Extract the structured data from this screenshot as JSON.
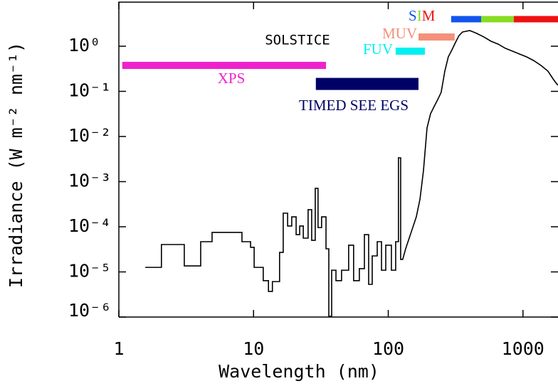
{
  "chart_data": {
    "type": "line",
    "xlabel": "Wavelength (nm)",
    "ylabel": "Irradiance (W m⁻² nm⁻¹)",
    "xscale": "log",
    "yscale": "log",
    "xlim": [
      1,
      1820
    ],
    "ylim": [
      1e-06,
      9.47
    ],
    "xticks": [
      1,
      10,
      100,
      1000
    ],
    "yticks": [
      {
        "value": 1,
        "label": "10⁰"
      },
      {
        "value": 0.1,
        "label": "10⁻¹"
      },
      {
        "value": 0.01,
        "label": "10⁻²"
      },
      {
        "value": 0.001,
        "label": "10⁻³"
      },
      {
        "value": 0.0001,
        "label": "10⁻⁴"
      },
      {
        "value": 1e-05,
        "label": "10⁻⁵"
      },
      {
        "value": 1e-06,
        "label": "10⁻⁶"
      }
    ],
    "color": "#000000",
    "x": [
      1.57,
      2.07,
      2.07,
      3.06,
      3.06,
      4.05,
      4.05,
      4.92,
      4.92,
      8.2,
      8.2,
      9.5,
      9.5,
      10.1,
      10.1,
      11.8,
      11.8,
      12.9,
      12.9,
      13.8,
      13.8,
      15.6,
      15.6,
      16.6,
      16.6,
      17.9,
      17.9,
      19.2,
      19.2,
      20.7,
      20.7,
      22.0,
      22.0,
      23.4,
      23.4,
      25.4,
      25.4,
      27.0,
      27.0,
      28.7,
      28.7,
      30.1,
      30.1,
      32.0,
      32.0,
      34.5,
      34.5,
      36.2,
      36.2,
      38.0,
      38.0,
      40.9,
      40.9,
      45.0,
      45.0,
      50.8,
      50.8,
      55.3,
      55.3,
      61.0,
      61.0,
      66.5,
      66.5,
      71.5,
      71.5,
      76.0,
      76.0,
      82.8,
      82.8,
      89.1,
      89.1,
      95.8,
      95.8,
      105.5,
      105.5,
      113.5,
      113.5,
      119,
      119,
      123.6,
      123.6,
      128,
      134.6,
      143,
      152,
      161.5,
      172,
      182.5,
      194,
      206,
      219,
      233,
      247,
      263,
      279,
      297,
      315,
      335,
      356,
      378,
      402,
      427,
      454,
      513,
      579,
      655,
      739,
      834,
      942,
      1064,
      1202,
      1358,
      1532,
      1687,
      1816
    ],
    "values": [
      1.26e-05,
      1.26e-05,
      4.04e-05,
      4.04e-05,
      1.36e-05,
      1.36e-05,
      4.67e-05,
      4.67e-05,
      7.5e-05,
      7.5e-05,
      4.67e-05,
      4.67e-05,
      3.5e-05,
      3.5e-05,
      1.26e-05,
      1.26e-05,
      6.4e-06,
      6.4e-06,
      3.7e-06,
      3.7e-06,
      6.1e-06,
      6.1e-06,
      2.7e-05,
      2.7e-05,
      0.0002,
      0.0002,
      0.000104,
      0.000104,
      0.000166,
      0.000166,
      6.7e-05,
      6.7e-05,
      0.000104,
      0.000104,
      5.6e-05,
      5.6e-05,
      0.000239,
      0.000239,
      5e-05,
      5e-05,
      0.00071,
      0.00071,
      9.6e-05,
      9.6e-05,
      0.000166,
      0.000166,
      3.25e-05,
      3.25e-05,
      1.04e-06,
      1.04e-06,
      1.09e-05,
      1.09e-05,
      6.4e-06,
      6.4e-06,
      1.09e-05,
      1.09e-05,
      3.9e-05,
      3.9e-05,
      6.4e-06,
      6.4e-06,
      1.18e-05,
      1.18e-05,
      6.7e-05,
      6.7e-05,
      5.3e-06,
      5.3e-06,
      2.26e-05,
      2.26e-05,
      4.67e-05,
      4.67e-05,
      1.09e-05,
      1.09e-05,
      3.9e-05,
      3.9e-05,
      1.09e-05,
      1.09e-05,
      4.67e-05,
      4.67e-05,
      0.00337,
      0.00337,
      1.89e-05,
      1.89e-05,
      3.25e-05,
      5.6e-05,
      9.6e-05,
      0.000166,
      0.00041,
      0.00175,
      0.0155,
      0.0319,
      0.046,
      0.066,
      0.095,
      0.281,
      0.58,
      0.83,
      1.2,
      1.72,
      2.07,
      2.14,
      2.22,
      2.07,
      1.92,
      1.6,
      1.29,
      1.11,
      0.9,
      0.78,
      0.67,
      0.58,
      0.48,
      0.376,
      0.281,
      0.182,
      0.136
    ],
    "instruments": [
      {
        "name": "XPS",
        "color": "#ee22cc",
        "range": [
          1.06,
          34.5
        ],
        "level": 0.376
      },
      {
        "name": "TIMED SEE EGS",
        "color": "#000066",
        "range": [
          29,
          167.6
        ],
        "level": 0.146
      },
      {
        "name": "FUV",
        "color": "#00f0f0",
        "range": [
          113.5,
          187
        ],
        "level": 0.776
      },
      {
        "name": "MUV",
        "color": "#f4907a",
        "range": [
          167.6,
          311
        ],
        "level": 1.6
      },
      {
        "name": "SOLSTICE",
        "color": "#000000"
      },
      {
        "name": "SIM",
        "level": 3.97,
        "segments": [
          {
            "color": "#1155ee",
            "range": [
              293,
              489
            ]
          },
          {
            "color": "#88dd22",
            "range": [
              489,
              855
            ]
          },
          {
            "color": "#ee1111",
            "range": [
              855,
              1820
            ]
          }
        ]
      }
    ]
  }
}
